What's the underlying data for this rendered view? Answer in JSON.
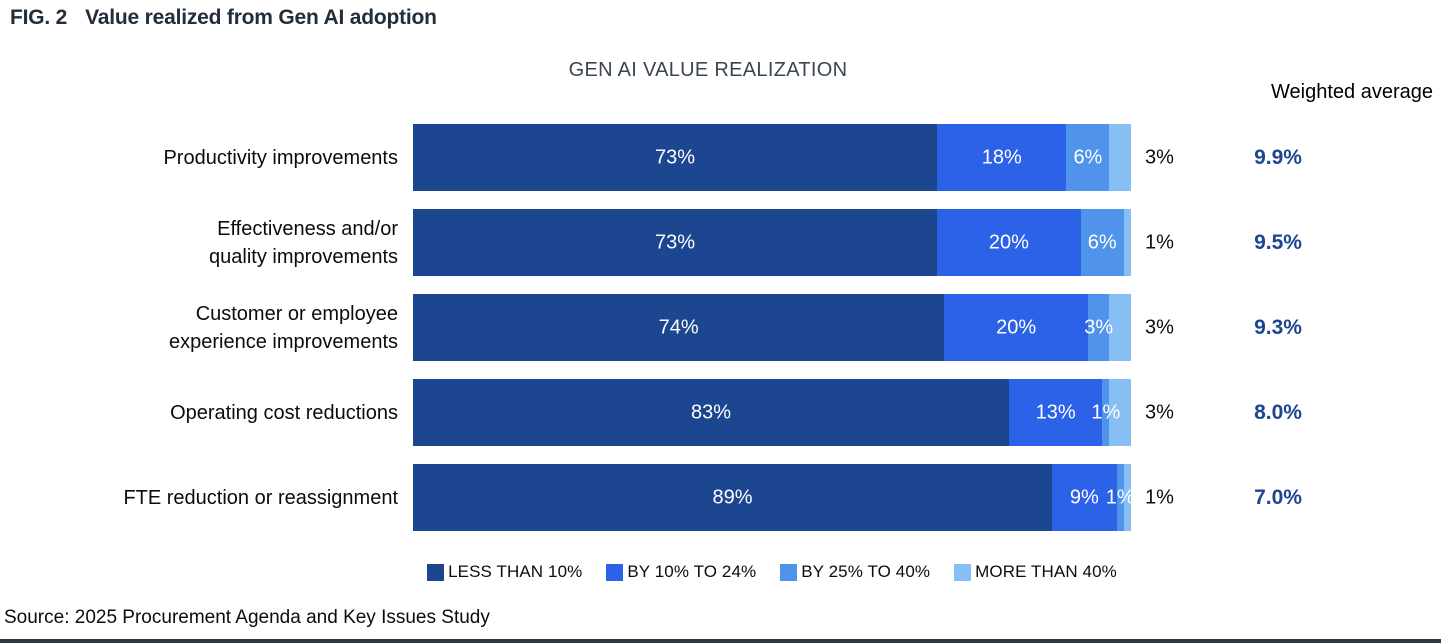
{
  "header": {
    "fig_tag": "FIG. 2",
    "title": "Value realized from Gen AI adoption"
  },
  "chart_title": "GEN AI VALUE REALIZATION",
  "weighted_average_header": "Weighted average",
  "source": "Source: 2025 Procurement Agenda and Key Issues Study",
  "colors": {
    "dark_navy": "#1d4690",
    "bright_blue": "#2b62e8",
    "medium_blue": "#4f94ea",
    "light_blue": "#87bef3",
    "weighted_value_text": "#1d4690",
    "header_text": "#222e3a",
    "bottom_rule": "#2a3747"
  },
  "chart_data": {
    "type": "bar",
    "stacked": true,
    "orientation": "horizontal",
    "title": "GEN AI VALUE REALIZATION",
    "categories": [
      "Productivity improvements",
      "Effectiveness and/or quality improvements",
      "Customer or employee experience improvements",
      "Operating cost reductions",
      "FTE reduction or reassignment"
    ],
    "category_lines": [
      [
        "Productivity improvements"
      ],
      [
        "Effectiveness and/or",
        "quality improvements"
      ],
      [
        "Customer or employee",
        "experience improvements"
      ],
      [
        "Operating cost reductions"
      ],
      [
        "FTE reduction or reassignment"
      ]
    ],
    "series": [
      {
        "name": "LESS THAN 10%",
        "color": "#1d4690",
        "values": [
          73,
          73,
          74,
          83,
          89
        ],
        "label_position": "inside"
      },
      {
        "name": "BY 10% TO 24%",
        "color": "#2b62e8",
        "values": [
          18,
          20,
          20,
          13,
          9
        ],
        "label_position": "inside"
      },
      {
        "name": "BY 25% TO 40%",
        "color": "#4f94ea",
        "values": [
          6,
          6,
          3,
          1,
          1
        ],
        "label_position": "inside"
      },
      {
        "name": "MORE THAN 40%",
        "color": "#87bef3",
        "values": [
          3,
          1,
          3,
          3,
          1
        ],
        "label_position": "outside"
      }
    ],
    "weighted_averages": [
      "9.9%",
      "9.5%",
      "9.3%",
      "8.0%",
      "7.0%"
    ],
    "value_suffix": "%",
    "xlim": [
      0,
      100
    ],
    "legend_position": "bottom",
    "grid": false
  }
}
